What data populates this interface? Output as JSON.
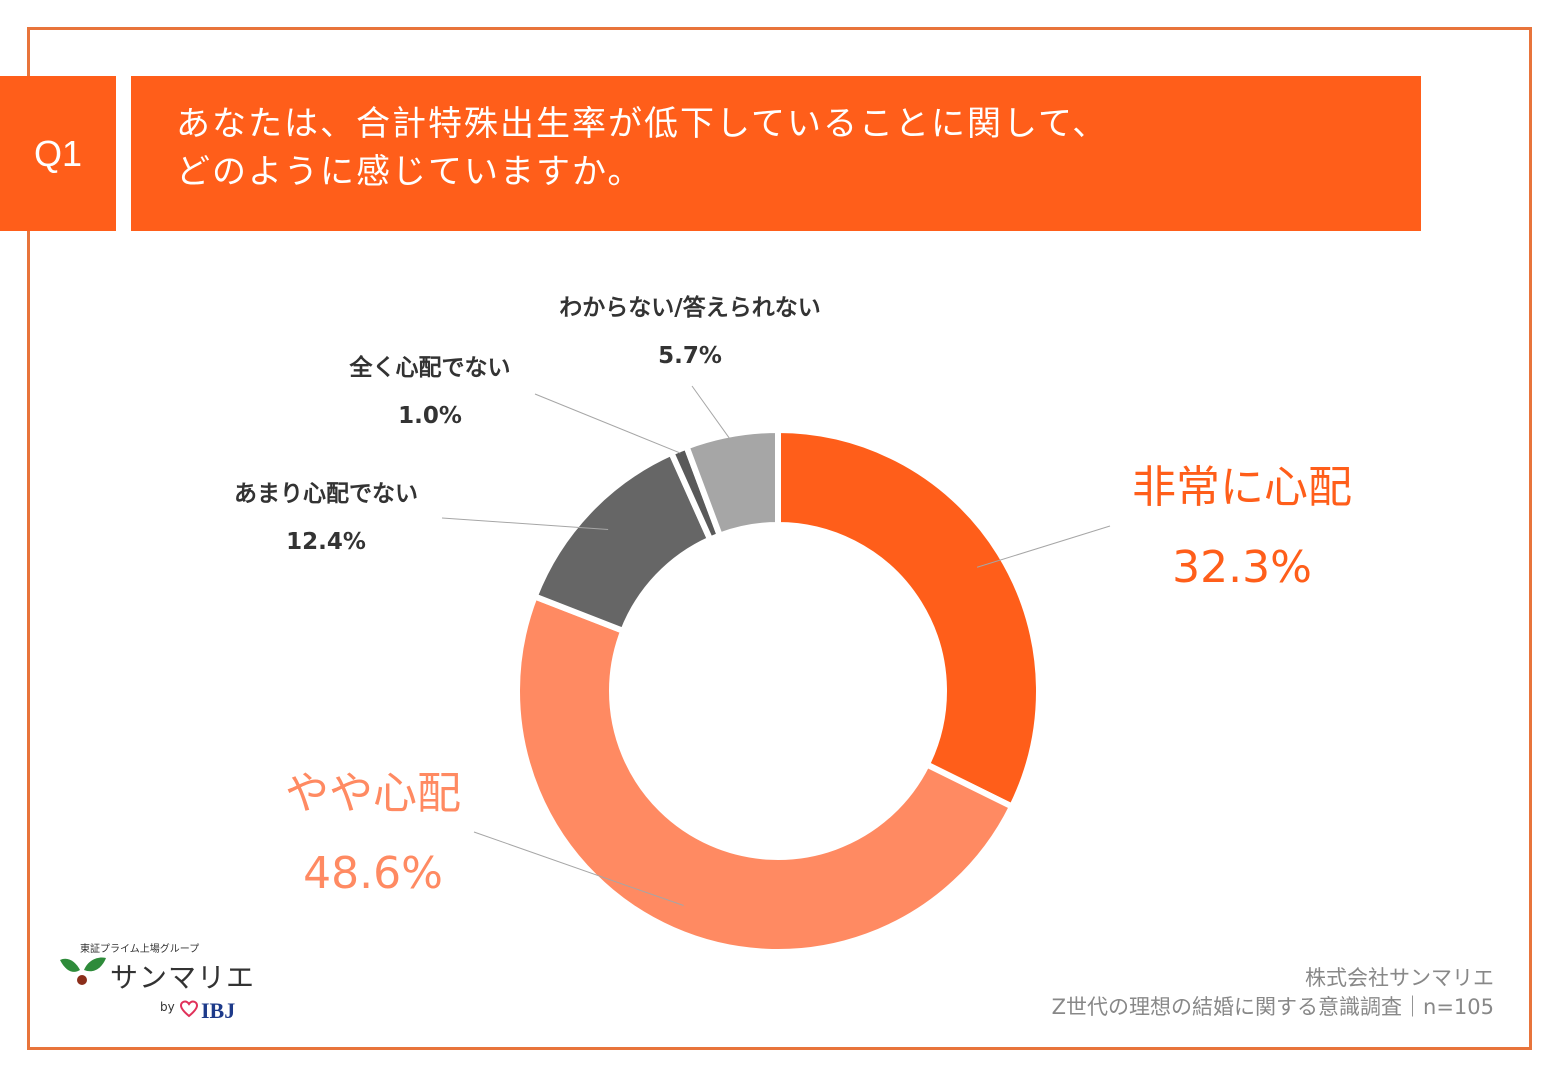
{
  "question": {
    "badge": "Q1",
    "line1": "あなたは、合計特殊出生率が低下していることに関して、",
    "line2": "どのように感じていますか。"
  },
  "chart_data": {
    "type": "pie",
    "donut": true,
    "categories": [
      "非常に心配",
      "やや心配",
      "あまり心配でない",
      "全く心配でない",
      "わからない/答えられない"
    ],
    "values": [
      32.3,
      48.6,
      12.4,
      1.0,
      5.7
    ],
    "labels": [
      "32.3%",
      "48.6%",
      "12.4%",
      "1.0%",
      "5.7%"
    ],
    "colors": [
      "#ff5e1a",
      "#ff8a62",
      "#666666",
      "#595959",
      "#a6a6a6"
    ],
    "title": "",
    "xlabel": "",
    "ylabel": ""
  },
  "logo": {
    "tagline": "東証プライム上場グループ",
    "brand": "サンマリエ",
    "by": "by",
    "partner": "IBJ"
  },
  "credit": {
    "company": "株式会社サンマリエ",
    "survey": "Z世代の理想の結婚に関する意識調査｜n=105"
  }
}
